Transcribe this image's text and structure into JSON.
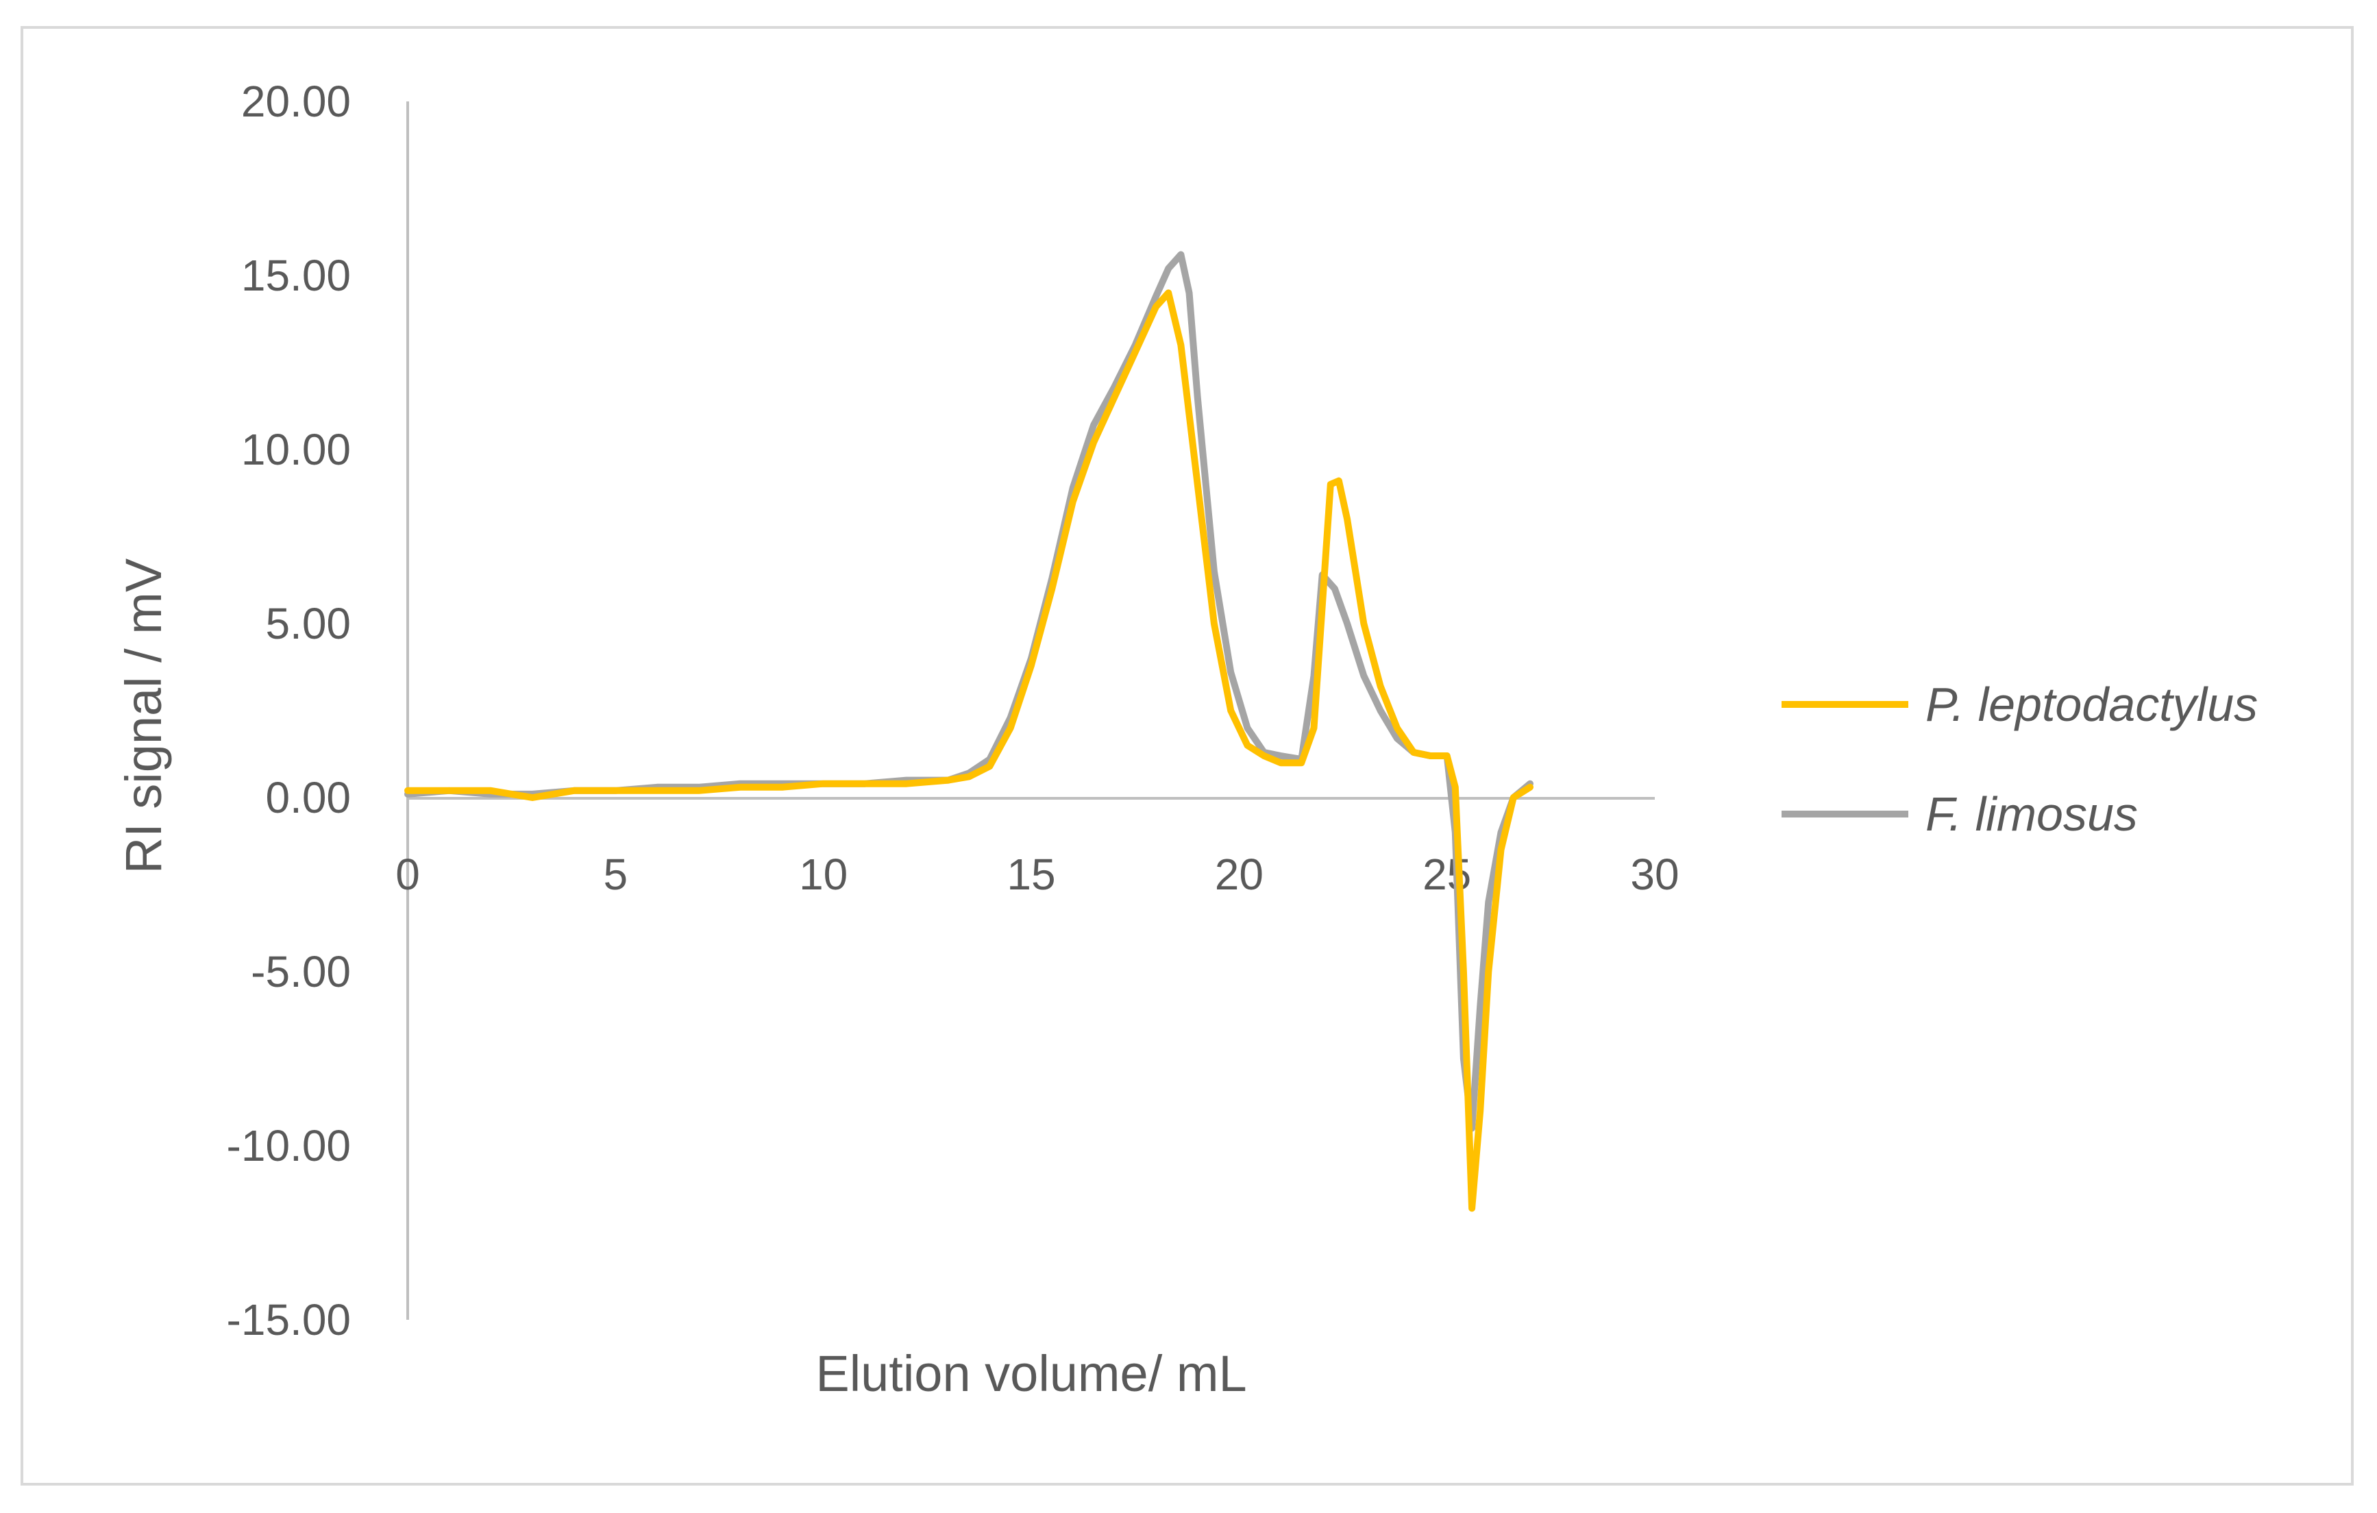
{
  "chart_data": {
    "type": "line",
    "title": "",
    "xlabel": "Elution volume/ mL",
    "ylabel": "RI signal / mV",
    "xlim": [
      0,
      30
    ],
    "ylim": [
      -15,
      20
    ],
    "x_ticks": [
      "0",
      "5",
      "10",
      "15",
      "20",
      "25",
      "30"
    ],
    "y_ticks": [
      "20.00",
      "15.00",
      "10.00",
      "5.00",
      "0.00",
      "-5.00",
      "-10.00",
      "-15.00"
    ],
    "grid": false,
    "legend_position": "right",
    "series": [
      {
        "name": "P. leptodactylus",
        "color": "#FFC000",
        "x": [
          0,
          1,
          2,
          3,
          4,
          5,
          6,
          7,
          8,
          9,
          10,
          11,
          12,
          13,
          13.5,
          14,
          14.5,
          15,
          15.5,
          16,
          16.5,
          17,
          17.5,
          18,
          18.3,
          18.6,
          19,
          19.4,
          19.8,
          20.2,
          20.6,
          21,
          21.5,
          21.8,
          22,
          22.2,
          22.4,
          22.6,
          23,
          23.4,
          23.8,
          24.2,
          24.6,
          25,
          25.2,
          25.4,
          25.6,
          25.8,
          26,
          26.3,
          26.6,
          27
        ],
        "y": [
          0.2,
          0.2,
          0.2,
          0.0,
          0.2,
          0.2,
          0.2,
          0.2,
          0.3,
          0.3,
          0.4,
          0.4,
          0.4,
          0.5,
          0.6,
          0.9,
          2.0,
          3.8,
          6.0,
          8.5,
          10.2,
          11.5,
          12.8,
          14.1,
          14.5,
          13.0,
          9.0,
          5.0,
          2.5,
          1.5,
          1.2,
          1.0,
          1.0,
          2.0,
          5.5,
          9.0,
          9.1,
          8.0,
          5.0,
          3.2,
          2.0,
          1.3,
          1.2,
          1.2,
          0.3,
          -5.0,
          -11.8,
          -9.0,
          -5.0,
          -1.5,
          0.0,
          0.3
        ]
      },
      {
        "name": "F. limosus",
        "color": "#A5A5A5",
        "x": [
          0,
          1,
          2,
          3,
          4,
          5,
          6,
          7,
          8,
          9,
          10,
          11,
          12,
          13,
          13.5,
          14,
          14.5,
          15,
          15.5,
          16,
          16.5,
          17,
          17.5,
          18,
          18.3,
          18.6,
          18.8,
          19,
          19.4,
          19.8,
          20.2,
          20.6,
          21,
          21.5,
          21.8,
          22,
          22.3,
          22.6,
          23,
          23.4,
          23.8,
          24.2,
          24.6,
          25,
          25.2,
          25.4,
          25.6,
          25.8,
          26,
          26.3,
          26.6,
          27
        ],
        "y": [
          0.1,
          0.2,
          0.1,
          0.1,
          0.2,
          0.2,
          0.3,
          0.3,
          0.4,
          0.4,
          0.4,
          0.4,
          0.5,
          0.5,
          0.7,
          1.1,
          2.3,
          4.0,
          6.3,
          8.9,
          10.7,
          11.8,
          13.0,
          14.4,
          15.2,
          15.6,
          14.5,
          11.5,
          6.5,
          3.6,
          2.0,
          1.3,
          1.2,
          1.1,
          3.5,
          6.4,
          6.0,
          5.0,
          3.5,
          2.5,
          1.7,
          1.3,
          1.2,
          1.2,
          -1.0,
          -7.5,
          -9.5,
          -6.0,
          -3.0,
          -1.0,
          0.0,
          0.4
        ]
      }
    ]
  }
}
